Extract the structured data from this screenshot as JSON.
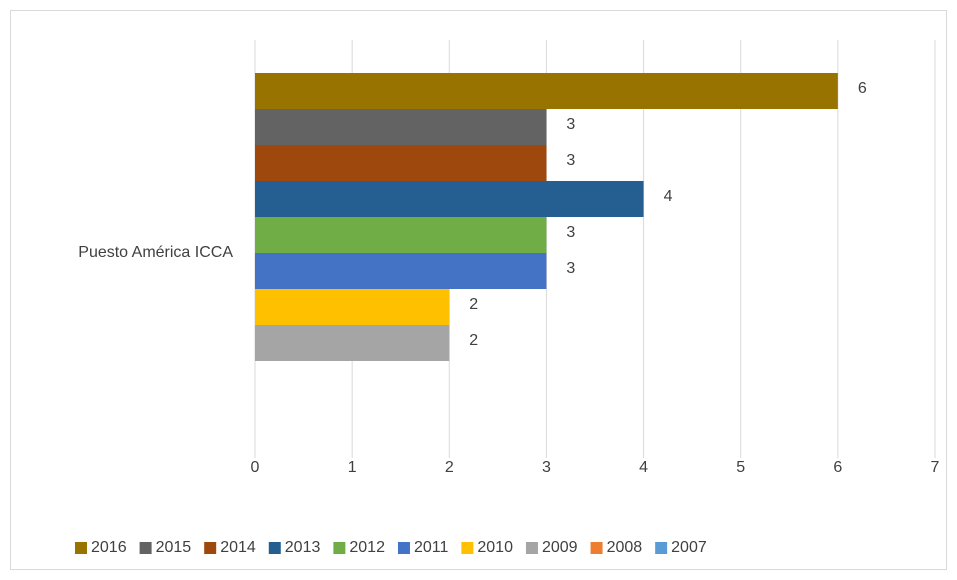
{
  "chart_data": {
    "type": "bar",
    "orientation": "horizontal",
    "categories": [
      "Puesto América ICCA"
    ],
    "series": [
      {
        "name": "2016",
        "color": "#997300",
        "values": [
          6
        ]
      },
      {
        "name": "2015",
        "color": "#636363",
        "values": [
          3
        ]
      },
      {
        "name": "2014",
        "color": "#9e480e",
        "values": [
          3
        ]
      },
      {
        "name": "2013",
        "color": "#255e91",
        "values": [
          4
        ]
      },
      {
        "name": "2012",
        "color": "#70ad47",
        "values": [
          3
        ]
      },
      {
        "name": "2011",
        "color": "#4472c4",
        "values": [
          3
        ]
      },
      {
        "name": "2010",
        "color": "#ffc000",
        "values": [
          2
        ]
      },
      {
        "name": "2009",
        "color": "#a5a5a5",
        "values": [
          2
        ]
      },
      {
        "name": "2008",
        "color": "#ed7d31",
        "values": [
          null
        ]
      },
      {
        "name": "2007",
        "color": "#5b9bd5",
        "values": [
          null
        ]
      }
    ],
    "xlim": [
      0,
      7
    ],
    "xticks": [
      0,
      1,
      2,
      3,
      4,
      5,
      6,
      7
    ],
    "grid": true,
    "legend": "bottom",
    "data_labels": true
  }
}
